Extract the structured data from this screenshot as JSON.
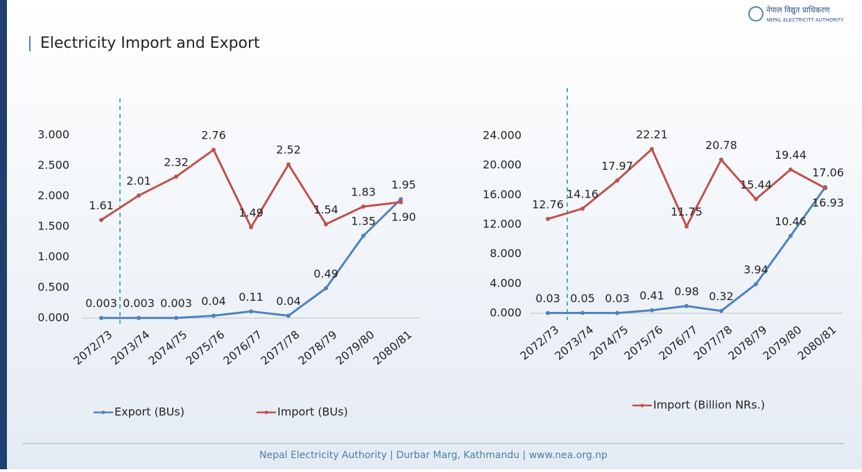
{
  "header": {
    "title": "Electricity Import and Export",
    "logo_native": "नेपाल विद्युत प्राधिकरण",
    "logo_english": "NEPAL ELECTRICITY AUTHORITY"
  },
  "footer": {
    "text": "Nepal Electricity Authority | Durbar Marg, Kathmandu | www.nea.org.np"
  },
  "chart_data": [
    {
      "type": "line",
      "categories": [
        "2072/73",
        "2073/74",
        "2074/75",
        "2075/76",
        "2076/77",
        "2077/78",
        "2078/79",
        "2079/80",
        "2080/81"
      ],
      "series": [
        {
          "name": "Export (BUs)",
          "color": "#4f81bd",
          "values": [
            0.003,
            0.003,
            0.003,
            0.04,
            0.11,
            0.04,
            0.49,
            1.35,
            1.95
          ],
          "value_labels": [
            "0.003",
            "0.003",
            "0.003",
            "0.04",
            "0.11",
            "0.04",
            "0.49",
            "1.35",
            "1.95"
          ]
        },
        {
          "name": "Import (BUs)",
          "color": "#c0504d",
          "values": [
            1.61,
            2.01,
            2.32,
            2.76,
            1.49,
            2.52,
            1.54,
            1.83,
            1.9
          ],
          "value_labels": [
            "1.61",
            "2.01",
            "2.32",
            "2.76",
            "1.49",
            "2.52",
            "1.54",
            "1.83",
            "1.90"
          ]
        }
      ],
      "ylim": [
        0,
        3
      ],
      "yticks": [
        {
          "value": 0,
          "label": "0.000"
        },
        {
          "value": 0.5,
          "label": "0.500"
        },
        {
          "value": 1,
          "label": "1.000"
        },
        {
          "value": 1.5,
          "label": "1.500"
        },
        {
          "value": 2,
          "label": "2.000"
        },
        {
          "value": 2.5,
          "label": "2.500"
        },
        {
          "value": 3,
          "label": "3.000"
        }
      ],
      "legend": "bottom"
    },
    {
      "type": "line",
      "categories": [
        "2072/73",
        "2073/74",
        "2074/75",
        "2075/76",
        "2076/77",
        "2077/78",
        "2078/79",
        "2079/80",
        "2080/81"
      ],
      "series": [
        {
          "color": "#4f81bd",
          "values": [
            0.03,
            0.05,
            0.03,
            0.41,
            0.98,
            0.32,
            3.94,
            10.46,
            17.06
          ],
          "value_labels": [
            "0.03",
            "0.05",
            "0.03",
            "0.41",
            "0.98",
            "0.32",
            "3.94",
            "10.46",
            "17.06"
          ]
        },
        {
          "name": "Import (Billion NRs.)",
          "color": "#c0504d",
          "values": [
            12.76,
            14.16,
            17.97,
            22.21,
            11.75,
            20.78,
            15.44,
            19.44,
            16.93
          ],
          "value_labels": [
            "12.76",
            "14.16",
            "17.97",
            "22.21",
            "11.75",
            "20.78",
            "15.44",
            "19.44",
            "16.93"
          ]
        }
      ],
      "ylim": [
        0,
        24
      ],
      "yticks": [
        {
          "value": 0,
          "label": "0.000"
        },
        {
          "value": 4,
          "label": "4.000"
        },
        {
          "value": 8,
          "label": "8.000"
        },
        {
          "value": 12,
          "label": "12.000"
        },
        {
          "value": 16,
          "label": "16.000"
        },
        {
          "value": 20,
          "label": "20.000"
        },
        {
          "value": 24,
          "label": "24.000"
        }
      ],
      "legend": "bottom"
    }
  ]
}
